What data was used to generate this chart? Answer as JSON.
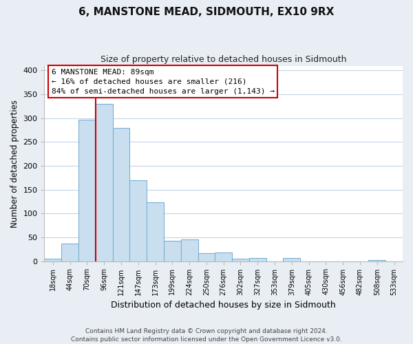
{
  "title": "6, MANSTONE MEAD, SIDMOUTH, EX10 9RX",
  "subtitle": "Size of property relative to detached houses in Sidmouth",
  "xlabel": "Distribution of detached houses by size in Sidmouth",
  "ylabel": "Number of detached properties",
  "bar_labels": [
    "18sqm",
    "44sqm",
    "70sqm",
    "96sqm",
    "121sqm",
    "147sqm",
    "173sqm",
    "199sqm",
    "224sqm",
    "250sqm",
    "276sqm",
    "302sqm",
    "327sqm",
    "353sqm",
    "379sqm",
    "405sqm",
    "430sqm",
    "456sqm",
    "482sqm",
    "508sqm",
    "533sqm"
  ],
  "bar_values": [
    5,
    37,
    297,
    330,
    280,
    170,
    123,
    42,
    46,
    16,
    18,
    5,
    6,
    0,
    6,
    0,
    0,
    0,
    0,
    2,
    0
  ],
  "bar_color": "#c9dff0",
  "bar_edge_color": "#7ab0d4",
  "marker_line_color": "#cc0000",
  "annotation_line1": "6 MANSTONE MEAD: 89sqm",
  "annotation_line2": "← 16% of detached houses are smaller (216)",
  "annotation_line3": "84% of semi-detached houses are larger (1,143) →",
  "ylim": [
    0,
    410
  ],
  "yticks": [
    0,
    50,
    100,
    150,
    200,
    250,
    300,
    350,
    400
  ],
  "footer_line1": "Contains HM Land Registry data © Crown copyright and database right 2024.",
  "footer_line2": "Contains public sector information licensed under the Open Government Licence v3.0.",
  "bg_color": "#e8eef4",
  "plot_bg_color": "#ffffff",
  "grid_color": "#c5d5e5"
}
